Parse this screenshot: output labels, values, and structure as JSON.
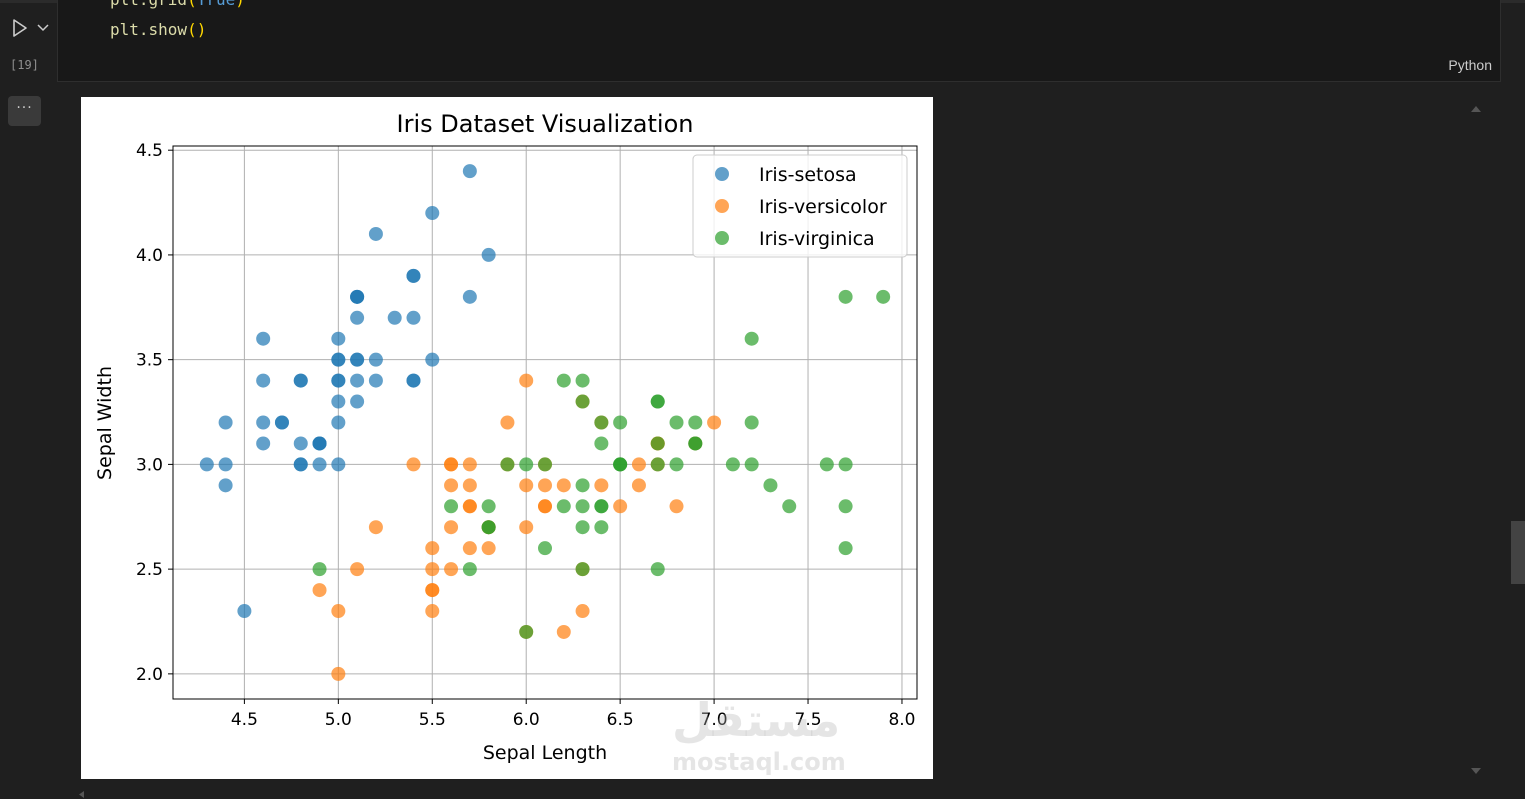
{
  "cell": {
    "code_lines": [
      {
        "fn": "plt.grid",
        "open": "(",
        "arg": "True",
        "close": ")"
      },
      {
        "fn": "plt.show",
        "open": "(",
        "arg": "",
        "close": ")"
      }
    ],
    "exec_count": "[19]",
    "language": "Python",
    "more_label": "···"
  },
  "watermark": {
    "arabic": "مستقل",
    "latin": "mostaql.com"
  },
  "colors": {
    "setosa": "#1f77b4",
    "versicolor": "#ff7f0e",
    "virginica": "#2ca02c"
  },
  "icons": [
    "run-icon",
    "chevron-down-icon",
    "more-icon",
    "scroll-up-icon",
    "scroll-down-icon",
    "scroll-left-icon"
  ],
  "chart_data": {
    "type": "scatter",
    "title": "Iris Dataset Visualization",
    "xlabel": "Sepal Length",
    "ylabel": "Sepal Width",
    "xlim": [
      4.12,
      8.08
    ],
    "ylim": [
      1.88,
      4.52
    ],
    "xticks": [
      "4.5",
      "5.0",
      "5.5",
      "6.0",
      "6.5",
      "7.0",
      "7.5",
      "8.0"
    ],
    "yticks": [
      "2.0",
      "2.5",
      "3.0",
      "3.5",
      "4.0",
      "4.5"
    ],
    "grid": true,
    "legend_position": "top-right",
    "series": [
      {
        "name": "Iris-setosa",
        "color": "#1f77b4",
        "points": [
          [
            5.1,
            3.5
          ],
          [
            4.9,
            3.0
          ],
          [
            4.7,
            3.2
          ],
          [
            4.6,
            3.1
          ],
          [
            5.0,
            3.6
          ],
          [
            5.4,
            3.9
          ],
          [
            4.6,
            3.4
          ],
          [
            5.0,
            3.4
          ],
          [
            4.4,
            2.9
          ],
          [
            4.9,
            3.1
          ],
          [
            5.4,
            3.7
          ],
          [
            4.8,
            3.4
          ],
          [
            4.8,
            3.0
          ],
          [
            4.3,
            3.0
          ],
          [
            5.8,
            4.0
          ],
          [
            5.7,
            4.4
          ],
          [
            5.4,
            3.9
          ],
          [
            5.1,
            3.5
          ],
          [
            5.7,
            3.8
          ],
          [
            5.1,
            3.8
          ],
          [
            5.4,
            3.4
          ],
          [
            5.1,
            3.7
          ],
          [
            4.6,
            3.6
          ],
          [
            5.1,
            3.3
          ],
          [
            4.8,
            3.4
          ],
          [
            5.0,
            3.0
          ],
          [
            5.0,
            3.4
          ],
          [
            5.2,
            3.5
          ],
          [
            5.2,
            3.4
          ],
          [
            4.7,
            3.2
          ],
          [
            4.8,
            3.1
          ],
          [
            5.4,
            3.4
          ],
          [
            5.2,
            4.1
          ],
          [
            5.5,
            4.2
          ],
          [
            4.9,
            3.1
          ],
          [
            5.0,
            3.2
          ],
          [
            5.5,
            3.5
          ],
          [
            4.9,
            3.1
          ],
          [
            4.4,
            3.0
          ],
          [
            5.1,
            3.4
          ],
          [
            5.0,
            3.5
          ],
          [
            4.5,
            2.3
          ],
          [
            4.4,
            3.2
          ],
          [
            5.0,
            3.5
          ],
          [
            5.1,
            3.8
          ],
          [
            4.8,
            3.0
          ],
          [
            5.1,
            3.8
          ],
          [
            4.6,
            3.2
          ],
          [
            5.3,
            3.7
          ],
          [
            5.0,
            3.3
          ]
        ]
      },
      {
        "name": "Iris-versicolor",
        "color": "#ff7f0e",
        "points": [
          [
            7.0,
            3.2
          ],
          [
            6.4,
            3.2
          ],
          [
            6.9,
            3.1
          ],
          [
            5.5,
            2.3
          ],
          [
            6.5,
            2.8
          ],
          [
            5.7,
            2.8
          ],
          [
            6.3,
            3.3
          ],
          [
            4.9,
            2.4
          ],
          [
            6.6,
            2.9
          ],
          [
            5.2,
            2.7
          ],
          [
            5.0,
            2.0
          ],
          [
            5.9,
            3.0
          ],
          [
            6.0,
            2.2
          ],
          [
            6.1,
            2.9
          ],
          [
            5.6,
            2.9
          ],
          [
            6.7,
            3.1
          ],
          [
            5.6,
            3.0
          ],
          [
            5.8,
            2.7
          ],
          [
            6.2,
            2.2
          ],
          [
            5.6,
            2.5
          ],
          [
            5.9,
            3.2
          ],
          [
            6.1,
            2.8
          ],
          [
            6.3,
            2.5
          ],
          [
            6.1,
            2.8
          ],
          [
            6.4,
            2.9
          ],
          [
            6.6,
            3.0
          ],
          [
            6.8,
            2.8
          ],
          [
            6.7,
            3.0
          ],
          [
            6.0,
            2.9
          ],
          [
            5.7,
            2.6
          ],
          [
            5.5,
            2.4
          ],
          [
            5.5,
            2.4
          ],
          [
            5.8,
            2.7
          ],
          [
            6.0,
            2.7
          ],
          [
            5.4,
            3.0
          ],
          [
            6.0,
            3.4
          ],
          [
            6.7,
            3.1
          ],
          [
            6.3,
            2.3
          ],
          [
            5.6,
            3.0
          ],
          [
            5.5,
            2.5
          ],
          [
            5.5,
            2.6
          ],
          [
            6.1,
            3.0
          ],
          [
            5.8,
            2.6
          ],
          [
            5.0,
            2.3
          ],
          [
            5.6,
            2.7
          ],
          [
            5.7,
            3.0
          ],
          [
            5.7,
            2.9
          ],
          [
            6.2,
            2.9
          ],
          [
            5.1,
            2.5
          ],
          [
            5.7,
            2.8
          ]
        ]
      },
      {
        "name": "Iris-virginica",
        "color": "#2ca02c",
        "points": [
          [
            6.3,
            3.3
          ],
          [
            5.8,
            2.7
          ],
          [
            7.1,
            3.0
          ],
          [
            6.3,
            2.9
          ],
          [
            6.5,
            3.0
          ],
          [
            7.6,
            3.0
          ],
          [
            4.9,
            2.5
          ],
          [
            7.3,
            2.9
          ],
          [
            6.7,
            2.5
          ],
          [
            7.2,
            3.6
          ],
          [
            6.5,
            3.2
          ],
          [
            6.4,
            2.7
          ],
          [
            6.8,
            3.0
          ],
          [
            5.7,
            2.5
          ],
          [
            5.8,
            2.8
          ],
          [
            6.4,
            3.2
          ],
          [
            6.5,
            3.0
          ],
          [
            7.7,
            3.8
          ],
          [
            7.7,
            2.6
          ],
          [
            6.0,
            2.2
          ],
          [
            6.9,
            3.2
          ],
          [
            5.6,
            2.8
          ],
          [
            7.7,
            2.8
          ],
          [
            6.3,
            2.7
          ],
          [
            6.7,
            3.3
          ],
          [
            7.2,
            3.2
          ],
          [
            6.2,
            2.8
          ],
          [
            6.1,
            3.0
          ],
          [
            6.4,
            2.8
          ],
          [
            7.2,
            3.0
          ],
          [
            7.4,
            2.8
          ],
          [
            7.9,
            3.8
          ],
          [
            6.4,
            2.8
          ],
          [
            6.3,
            2.8
          ],
          [
            6.1,
            2.6
          ],
          [
            7.7,
            3.0
          ],
          [
            6.3,
            3.4
          ],
          [
            6.4,
            3.1
          ],
          [
            6.0,
            3.0
          ],
          [
            6.9,
            3.1
          ],
          [
            6.7,
            3.1
          ],
          [
            6.9,
            3.1
          ],
          [
            5.8,
            2.7
          ],
          [
            6.8,
            3.2
          ],
          [
            6.7,
            3.3
          ],
          [
            6.7,
            3.0
          ],
          [
            6.3,
            2.5
          ],
          [
            6.5,
            3.0
          ],
          [
            6.2,
            3.4
          ],
          [
            5.9,
            3.0
          ]
        ]
      }
    ]
  }
}
